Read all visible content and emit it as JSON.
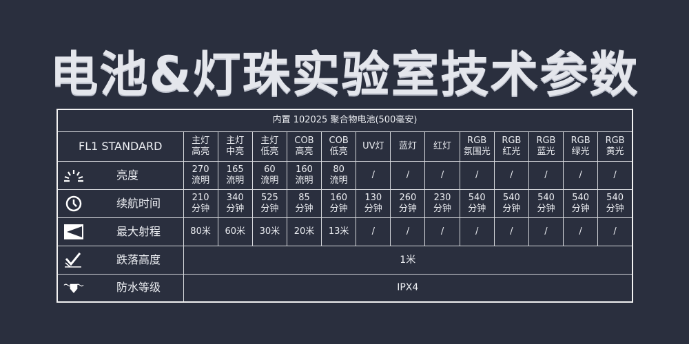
{
  "title": "电池&灯珠实验室技术参数",
  "table": {
    "battery": "内置 102025 聚合物电池(500毫安)",
    "model": "FL1 STANDARD",
    "columns": [
      [
        "主灯",
        "高亮"
      ],
      [
        "主灯",
        "中亮"
      ],
      [
        "主灯",
        "低亮"
      ],
      [
        "COB",
        "高亮"
      ],
      [
        "COB",
        "低亮"
      ],
      [
        "UV灯",
        ""
      ],
      [
        "蓝灯",
        ""
      ],
      [
        "红灯",
        ""
      ],
      [
        "RGB",
        "氛围光"
      ],
      [
        "RGB",
        "红光"
      ],
      [
        "RGB",
        "蓝光"
      ],
      [
        "RGB",
        "绿光"
      ],
      [
        "RGB",
        "黄光"
      ]
    ],
    "rows": [
      {
        "label": "亮度",
        "icon": "brightness-icon",
        "cells": [
          [
            "270",
            "流明"
          ],
          [
            "165",
            "流明"
          ],
          [
            "60",
            "流明"
          ],
          [
            "160",
            "流明"
          ],
          [
            "80",
            "流明"
          ],
          [
            "/",
            ""
          ],
          [
            "/",
            ""
          ],
          [
            "/",
            ""
          ],
          [
            "/",
            ""
          ],
          [
            "/",
            ""
          ],
          [
            "/",
            ""
          ],
          [
            "/",
            ""
          ],
          [
            "/",
            ""
          ]
        ]
      },
      {
        "label": "续航时间",
        "icon": "clock-icon",
        "cells": [
          [
            "210",
            "分钟"
          ],
          [
            "340",
            "分钟"
          ],
          [
            "525",
            "分钟"
          ],
          [
            "85",
            "分钟"
          ],
          [
            "160",
            "分钟"
          ],
          [
            "130",
            "分钟"
          ],
          [
            "260",
            "分钟"
          ],
          [
            "230",
            "分钟"
          ],
          [
            "540",
            "分钟"
          ],
          [
            "540",
            "分钟"
          ],
          [
            "540",
            "分钟"
          ],
          [
            "540",
            "分钟"
          ],
          [
            "540",
            "分钟"
          ]
        ]
      },
      {
        "label": "最大射程",
        "icon": "beam-range-icon",
        "cells": [
          [
            "80米",
            ""
          ],
          [
            "60米",
            ""
          ],
          [
            "30米",
            ""
          ],
          [
            "20米",
            ""
          ],
          [
            "13米",
            ""
          ],
          [
            "/",
            ""
          ],
          [
            "/",
            ""
          ],
          [
            "/",
            ""
          ],
          [
            "/",
            ""
          ],
          [
            "/",
            ""
          ],
          [
            "/",
            ""
          ],
          [
            "/",
            ""
          ],
          [
            "/",
            ""
          ]
        ]
      }
    ],
    "drop": {
      "label": "跌落高度",
      "icon": "drop-impact-icon",
      "value": "1米"
    },
    "water": {
      "label": "防水等级",
      "icon": "waterproof-icon",
      "value": "IPX4"
    }
  }
}
